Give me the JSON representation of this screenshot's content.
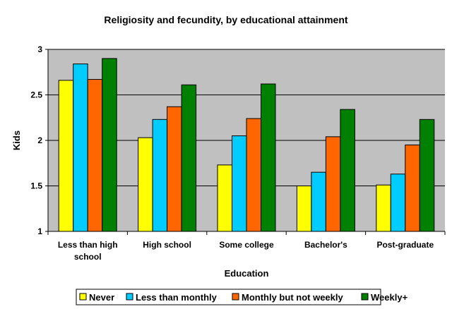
{
  "chart_data": {
    "type": "bar",
    "title": "Religiosity and fecundity, by educational attainment",
    "xlabel": "Education",
    "ylabel": "Kids",
    "ylim": [
      1,
      3
    ],
    "yticks": [
      "1",
      "1.5",
      "2",
      "2.5",
      "3"
    ],
    "ytick_values": [
      1,
      1.5,
      2,
      2.5,
      3
    ],
    "grid": true,
    "legend_position": "bottom",
    "categories": [
      [
        "Less than high",
        "school"
      ],
      [
        "High school"
      ],
      [
        "Some college"
      ],
      [
        "Bachelor's"
      ],
      [
        "Post-graduate"
      ]
    ],
    "series": [
      {
        "name": "Never",
        "color": "#ffff00",
        "values": [
          2.66,
          2.03,
          1.73,
          1.5,
          1.51
        ]
      },
      {
        "name": "Less than monthly",
        "color": "#00ccff",
        "values": [
          2.84,
          2.23,
          2.05,
          1.65,
          1.63
        ]
      },
      {
        "name": "Monthly but not weekly",
        "color": "#ff6600",
        "values": [
          2.67,
          2.37,
          2.24,
          2.04,
          1.95
        ]
      },
      {
        "name": "Weekly+",
        "color": "#008000",
        "values": [
          2.9,
          2.61,
          2.62,
          2.34,
          2.23
        ]
      }
    ],
    "plot_background": "#c0c0c0"
  }
}
